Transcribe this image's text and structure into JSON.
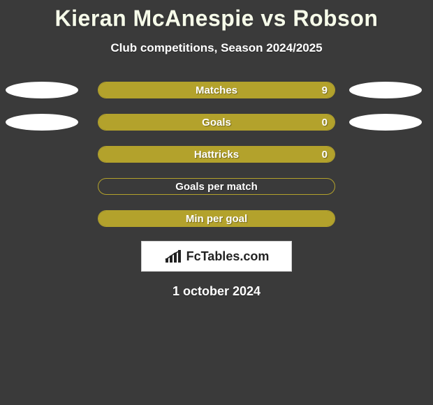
{
  "colors": {
    "background": "#3a3a3a",
    "title": "#f6fbe9",
    "subtitle": "#ffffff",
    "bar_border": "#b3a22c",
    "fill_left": "#b3a22c",
    "fill_right": "#b3a22c",
    "ellipse_left": "#ffffff",
    "ellipse_right": "#ffffff",
    "label_text": "#ffffff",
    "value_text": "#ffffff",
    "logo_bg": "#ffffff",
    "logo_border": "#cfcfcf",
    "logo_text": "#222222",
    "date_text": "#ffffff"
  },
  "title": "Kieran McAnespie vs Robson",
  "subtitle": "Club competitions, Season 2024/2025",
  "date": "1 october 2024",
  "logo": "FcTables.com",
  "stats": [
    {
      "label": "Matches",
      "left_value": "",
      "right_value": "9",
      "left_pct": 0,
      "right_pct": 100,
      "show_left_ellipse": true,
      "show_right_ellipse": true
    },
    {
      "label": "Goals",
      "left_value": "",
      "right_value": "0",
      "left_pct": 0,
      "right_pct": 100,
      "show_left_ellipse": true,
      "show_right_ellipse": true
    },
    {
      "label": "Hattricks",
      "left_value": "",
      "right_value": "0",
      "left_pct": 0,
      "right_pct": 100,
      "show_left_ellipse": false,
      "show_right_ellipse": false
    },
    {
      "label": "Goals per match",
      "left_value": "",
      "right_value": "",
      "left_pct": 0,
      "right_pct": 0,
      "show_left_ellipse": false,
      "show_right_ellipse": false
    },
    {
      "label": "Min per goal",
      "left_value": "",
      "right_value": "",
      "left_pct": 50,
      "right_pct": 50,
      "show_left_ellipse": false,
      "show_right_ellipse": false
    }
  ]
}
